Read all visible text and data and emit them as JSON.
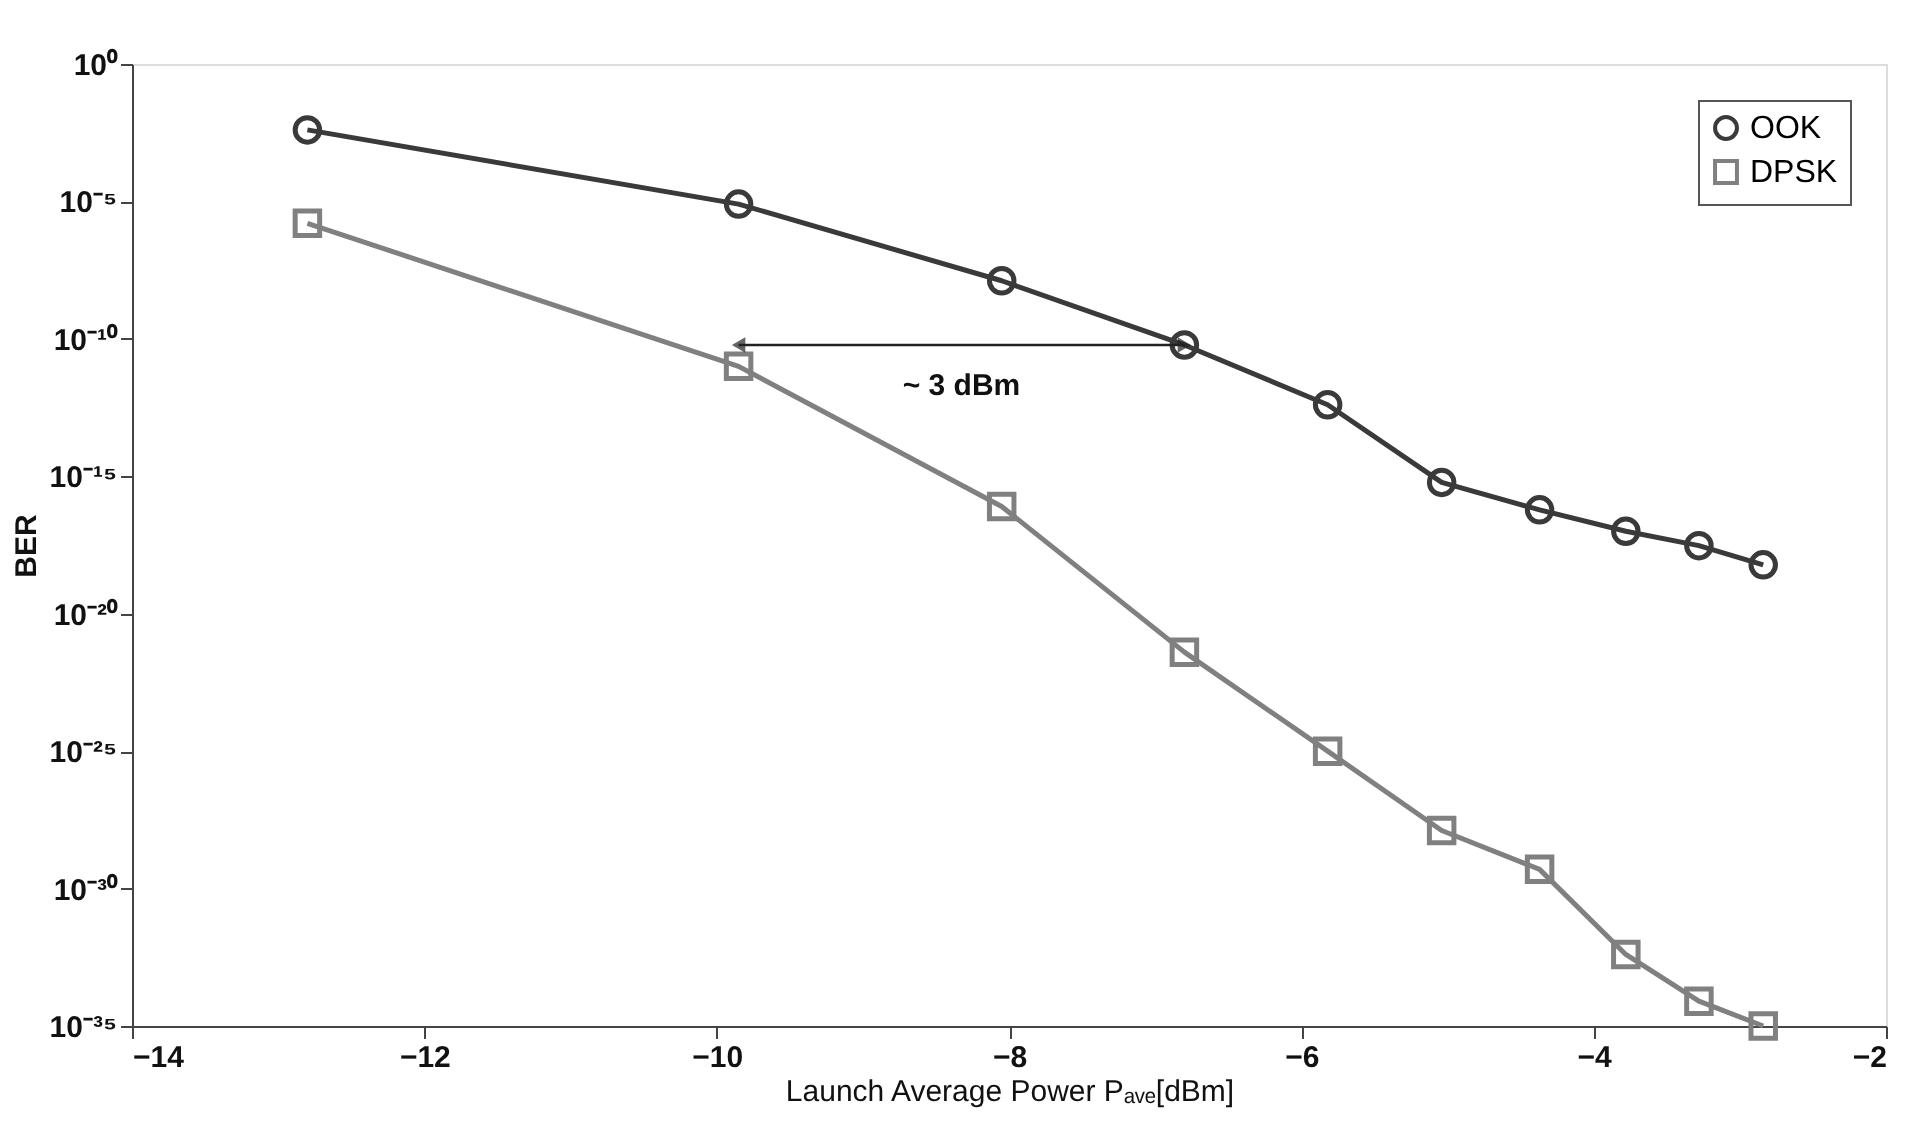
{
  "chart_data": {
    "type": "line",
    "xlabel": "Launch Average Power Pₐᵥₑ[dBm]",
    "ylabel": "BER",
    "log": "y",
    "grid": false,
    "legend": "top right",
    "line_style": "solid",
    "xlim": [
      -14,
      -2
    ],
    "xticks": [
      -14,
      -12,
      -10,
      -8,
      -6,
      -4,
      -2
    ],
    "ylim": [
      1e-35,
      1
    ],
    "yticks": [
      {
        "value": 1,
        "label": "10⁰"
      },
      {
        "value": 1e-05,
        "label": "10⁻⁵"
      },
      {
        "value": 1e-10,
        "label": "10⁻¹⁰"
      },
      {
        "value": 1e-15,
        "label": "10⁻¹⁵"
      },
      {
        "value": 1e-20,
        "label": "10⁻²⁰"
      },
      {
        "value": 1e-25,
        "label": "10⁻²⁵"
      },
      {
        "value": 1e-30,
        "label": "10⁻³⁰"
      },
      {
        "value": 1e-35,
        "label": "10⁻³⁵"
      }
    ],
    "x": [
      -12.8,
      -9.85,
      -8.05,
      -6.8,
      -5.82,
      -5.04,
      -4.37,
      -3.78,
      -3.28,
      -2.84
    ],
    "series": [
      {
        "name": "OOK",
        "color": "#3a3a3a",
        "marker": "circle",
        "values": [
          0.004,
          8e-06,
          1.3e-08,
          6e-11,
          4e-13,
          6e-16,
          6e-17,
          1e-17,
          3e-18,
          6e-19
        ]
      },
      {
        "name": "DPSK",
        "color": "#808080",
        "marker": "square",
        "values": [
          1.6e-06,
          1e-11,
          8e-17,
          4e-22,
          1e-25,
          1.3e-28,
          5e-30,
          4e-33,
          8e-35,
          1e-35
        ]
      }
    ],
    "annotations": [
      "~ 3 dBm"
    ]
  }
}
